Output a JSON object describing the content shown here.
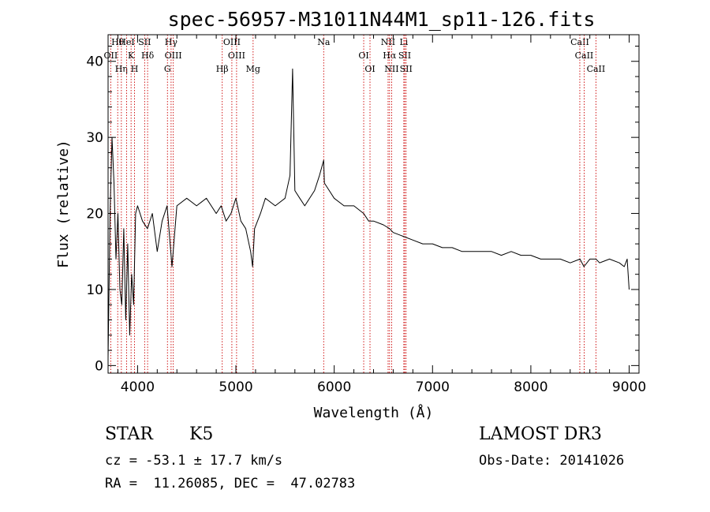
{
  "chart_data": {
    "type": "line",
    "title": "spec-56957-M31011N44M1_sp11-126.fits",
    "xlabel": "Wavelength (Å)",
    "ylabel": "Flux (relative)",
    "xlim": [
      3700,
      9100
    ],
    "ylim": [
      -1,
      43.5
    ],
    "xticks": [
      4000,
      5000,
      6000,
      7000,
      8000,
      9000
    ],
    "yticks": [
      0,
      10,
      20,
      30,
      40
    ],
    "grid": false,
    "line_color": "#000000",
    "marker_color": "#cc0000",
    "series": [
      {
        "x": [
          3700,
          3720,
          3740,
          3760,
          3780,
          3800,
          3820,
          3840,
          3860,
          3880,
          3900,
          3920,
          3940,
          3960,
          3980,
          4000,
          4050,
          4100,
          4150,
          4200,
          4250,
          4300,
          4350,
          4400,
          4500,
          4600,
          4700,
          4800,
          4850,
          4900,
          4950,
          5000,
          5050,
          5100,
          5150,
          5170,
          5190,
          5250,
          5300,
          5400,
          5500,
          5550,
          5577,
          5600,
          5650,
          5700,
          5800,
          5850,
          5893,
          5900,
          5950,
          6000,
          6100,
          6200,
          6300,
          6350,
          6400,
          6500,
          6563,
          6600,
          6700,
          6800,
          6900,
          7000,
          7100,
          7200,
          7300,
          7400,
          7500,
          7600,
          7700,
          7800,
          7900,
          8000,
          8100,
          8200,
          8300,
          8400,
          8500,
          8540,
          8600,
          8662,
          8700,
          8800,
          8900,
          8950,
          8980,
          9000
        ],
        "y": [
          1,
          20,
          30,
          24,
          14,
          20,
          10,
          8,
          18,
          6,
          16,
          4,
          12,
          8,
          20,
          21,
          19,
          18,
          20,
          15,
          19,
          21,
          13,
          21,
          22,
          21,
          22,
          20,
          21,
          19,
          20,
          22,
          19,
          18,
          15,
          13,
          18,
          20,
          22,
          21,
          22,
          25,
          39,
          23,
          22,
          21,
          23,
          25,
          27,
          24,
          23,
          22,
          21,
          21,
          20,
          19,
          19,
          18.5,
          18,
          17.5,
          17,
          16.5,
          16,
          16,
          15.5,
          15.5,
          15,
          15,
          15,
          15,
          14.5,
          15,
          14.5,
          14.5,
          14,
          14,
          14,
          13.5,
          14,
          13,
          14,
          14,
          13.5,
          14,
          13.5,
          13,
          14,
          10
        ]
      }
    ],
    "spectral_lines": [
      {
        "label": "Hθ",
        "wavelength": 3798
      },
      {
        "label": "OII",
        "wavelength": 3727
      },
      {
        "label": "Hη",
        "wavelength": 3835
      },
      {
        "label": "HeI",
        "wavelength": 3889
      },
      {
        "label": "K",
        "wavelength": 3934
      },
      {
        "label": "H",
        "wavelength": 3969
      },
      {
        "label": "SII",
        "wavelength": 4072
      },
      {
        "label": "Hδ",
        "wavelength": 4102
      },
      {
        "label": "G",
        "wavelength": 4304
      },
      {
        "label": "Hγ",
        "wavelength": 4341
      },
      {
        "label": "OIII",
        "wavelength": 4363
      },
      {
        "label": "Hβ",
        "wavelength": 4861
      },
      {
        "label": "OIII",
        "wavelength": 4959
      },
      {
        "label": "OIII",
        "wavelength": 5007
      },
      {
        "label": "Mg",
        "wavelength": 5175
      },
      {
        "label": "Na",
        "wavelength": 5893
      },
      {
        "label": "OI",
        "wavelength": 6300
      },
      {
        "label": "OI",
        "wavelength": 6364
      },
      {
        "label": "NII",
        "wavelength": 6548
      },
      {
        "label": "Hα",
        "wavelength": 6563
      },
      {
        "label": "NII",
        "wavelength": 6584
      },
      {
        "label": "Li",
        "wavelength": 6708
      },
      {
        "label": "SII",
        "wavelength": 6717
      },
      {
        "label": "SII",
        "wavelength": 6731
      },
      {
        "label": "CaII",
        "wavelength": 8498
      },
      {
        "label": "CaII",
        "wavelength": 8542
      },
      {
        "label": "CaII",
        "wavelength": 8662
      }
    ]
  },
  "info": {
    "object_class": "STAR",
    "subclass": "K5",
    "survey": "LAMOST DR3",
    "cz": "cz = -53.1 ± 17.7 km/s",
    "obs_date": "Obs-Date: 20141026",
    "radec": "RA =  11.26085, DEC =  47.02783"
  }
}
